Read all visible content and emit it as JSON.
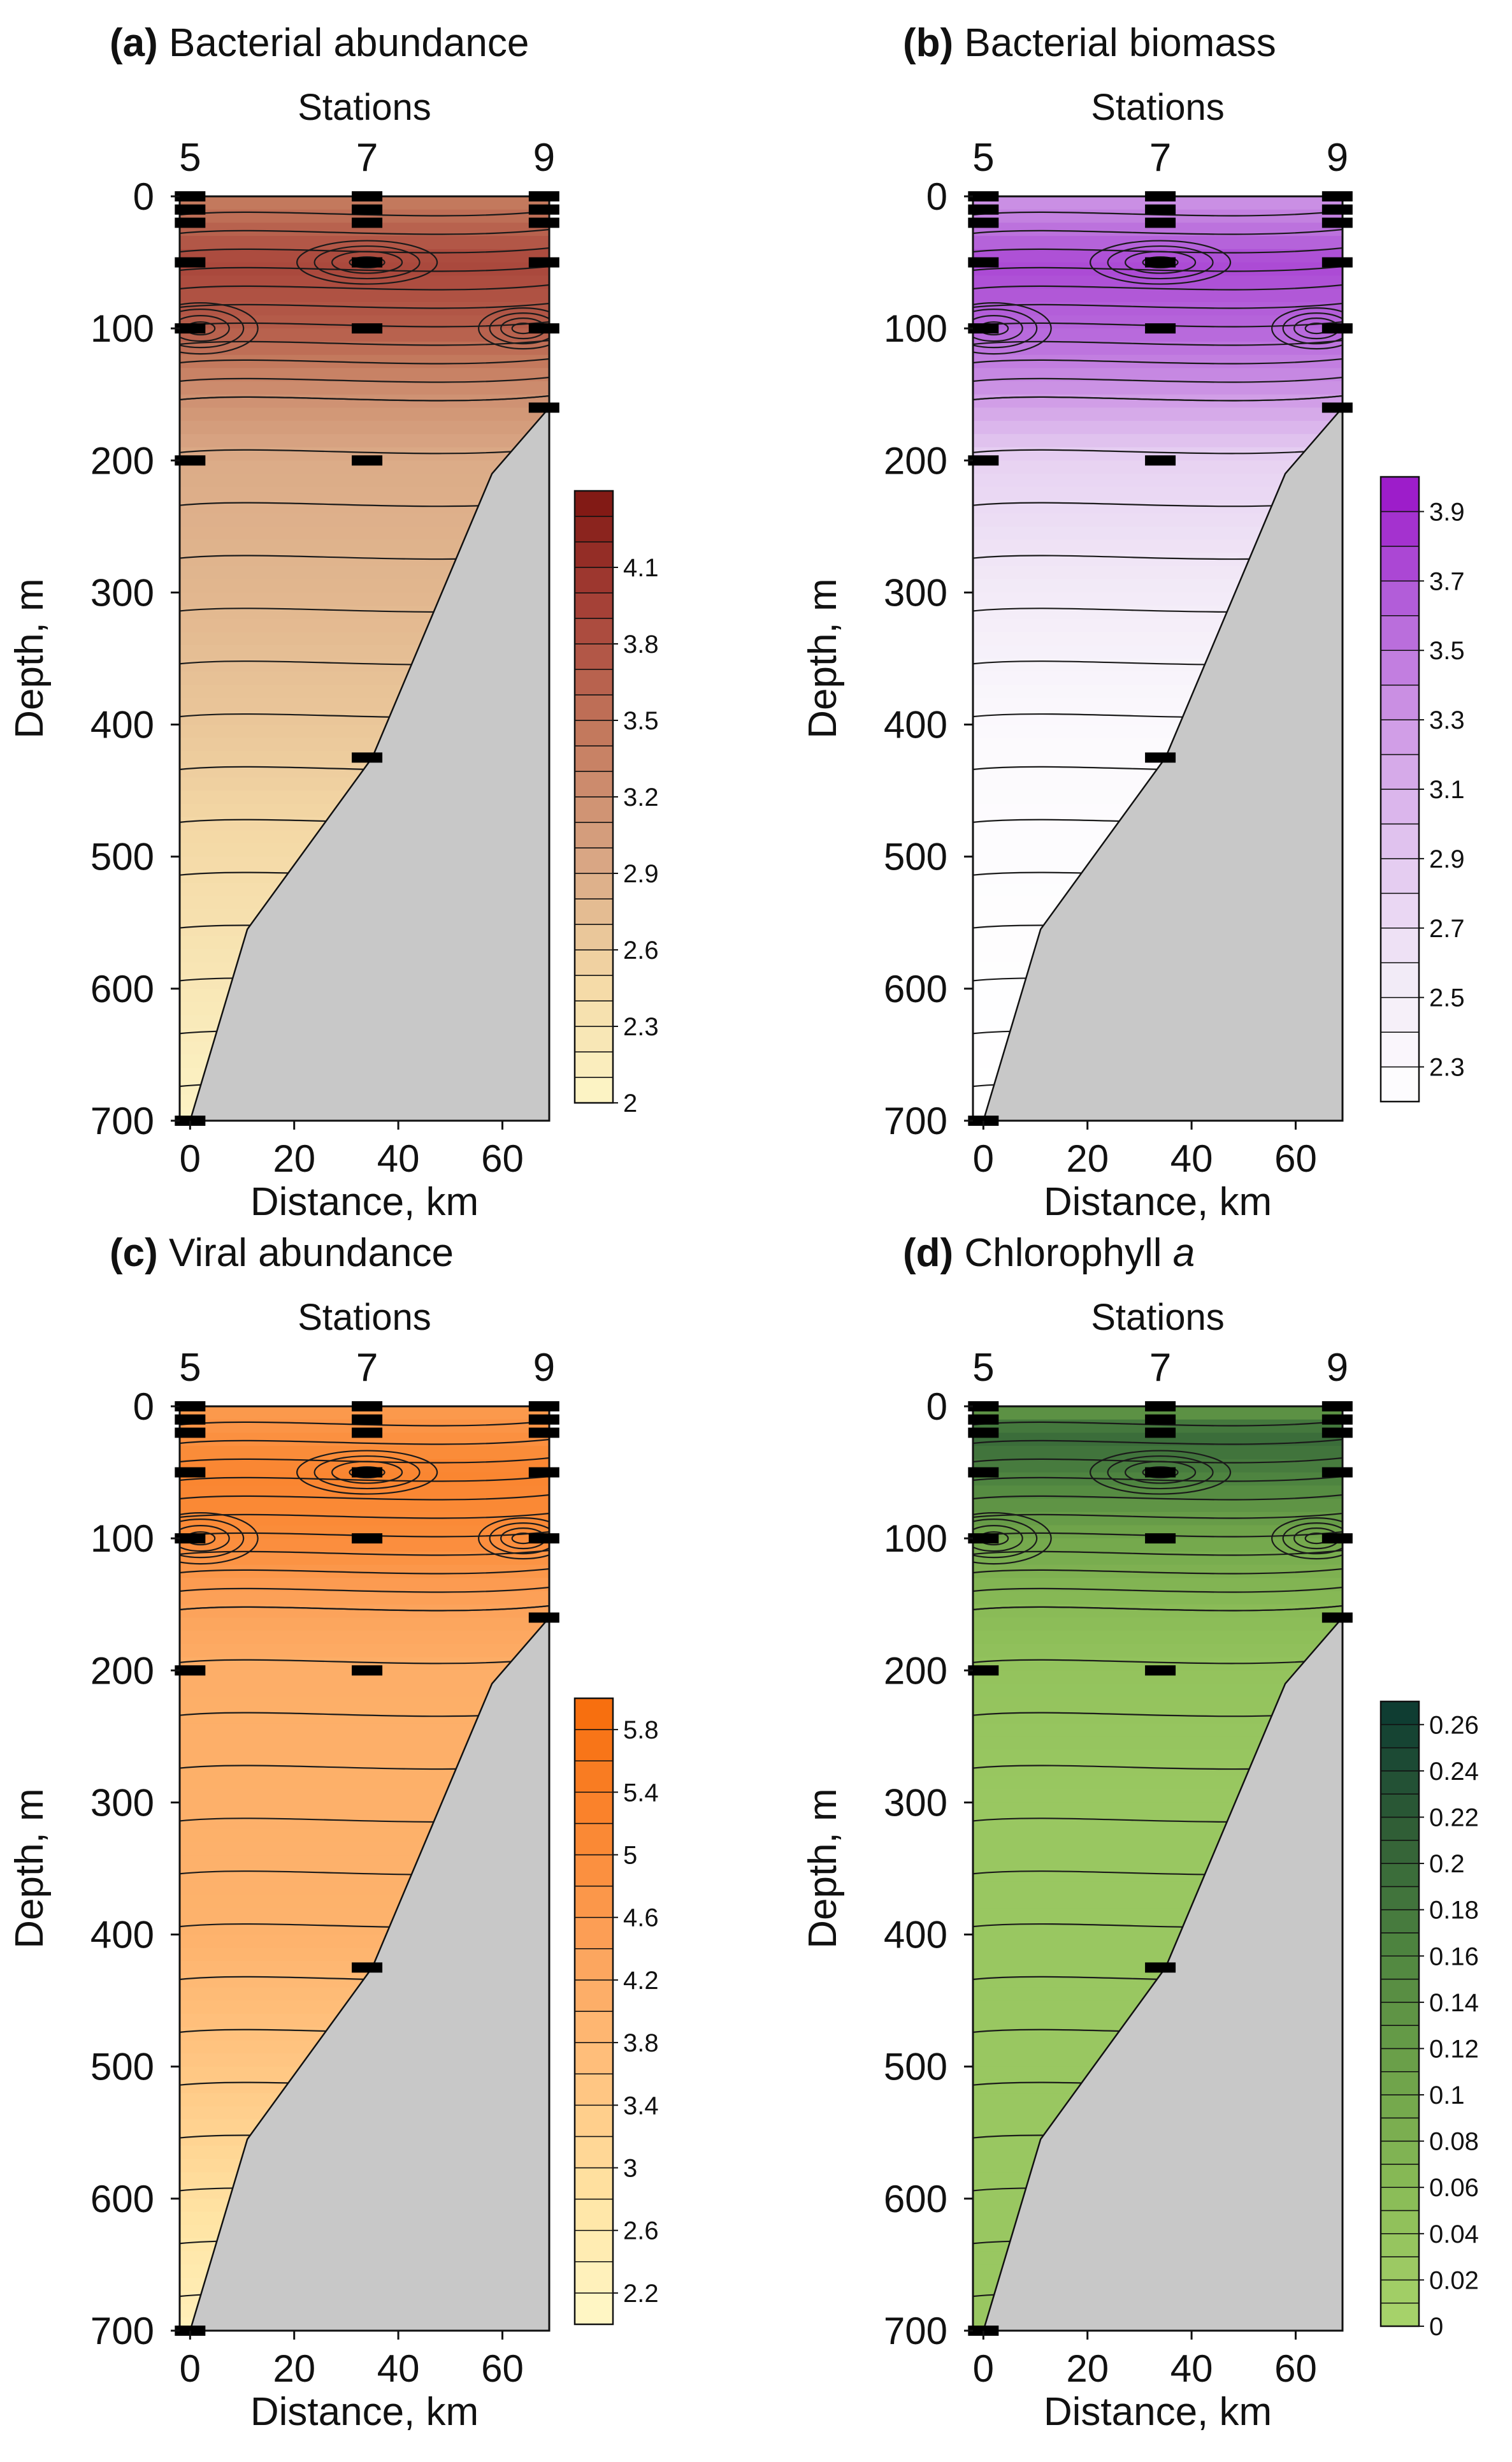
{
  "chart_data": [
    {
      "id": "a",
      "type": "contour",
      "panel_letter": "(a)",
      "title": "Bacterial abundance",
      "top_label": "Stations",
      "stations": [
        "5",
        "7",
        "9"
      ],
      "station_positions_km": [
        0,
        34,
        68
      ],
      "xlabel": "Distance, km",
      "ylabel": "Depth, m",
      "xlim": [
        -2,
        69
      ],
      "ylim": [
        700,
        0
      ],
      "xticks": [
        "0",
        "20",
        "40",
        "60"
      ],
      "yticks": [
        "0",
        "100",
        "200",
        "300",
        "400",
        "500",
        "600",
        "700"
      ],
      "colormap": [
        "#fdf6c8",
        "#f4d9a6",
        "#d8a583",
        "#c47a5e",
        "#a8443a",
        "#7e1511"
      ],
      "colorbar": {
        "ticks": [
          "4.1",
          "3.8",
          "3.5",
          "3.2",
          "2.9",
          "2.6",
          "2.3",
          "2"
        ],
        "values": [
          4.1,
          3.8,
          3.5,
          3.2,
          2.9,
          2.6,
          2.3,
          2.0
        ],
        "min": 2.0,
        "max": 4.4,
        "levels": 24
      },
      "depth_profile": {
        "depth_m": [
          0,
          50,
          100,
          150,
          200,
          300,
          400,
          500,
          600,
          700
        ],
        "value": [
          3.4,
          3.9,
          3.7,
          3.2,
          2.9,
          2.8,
          2.65,
          2.45,
          2.25,
          2.05
        ]
      },
      "seafloor": {
        "x_km": [
          0,
          11,
          35,
          58,
          69
        ],
        "depth_m": [
          700,
          555,
          425,
          210,
          160
        ]
      },
      "sample_depths": [
        {
          "station_km": 0,
          "depths_m": [
            0,
            10,
            20,
            50,
            100,
            200,
            700
          ]
        },
        {
          "station_km": 34,
          "depths_m": [
            0,
            10,
            20,
            50,
            100,
            200,
            425
          ]
        },
        {
          "station_km": 68,
          "depths_m": [
            0,
            10,
            20,
            50,
            100,
            160
          ]
        }
      ]
    },
    {
      "id": "b",
      "type": "contour",
      "panel_letter": "(b)",
      "title": "Bacterial biomass",
      "top_label": "Stations",
      "stations": [
        "5",
        "7",
        "9"
      ],
      "station_positions_km": [
        0,
        34,
        68
      ],
      "xlabel": "Distance, km",
      "ylabel": "Depth, m",
      "xlim": [
        -2,
        69
      ],
      "ylim": [
        700,
        0
      ],
      "xticks": [
        "0",
        "20",
        "40",
        "60"
      ],
      "yticks": [
        "0",
        "100",
        "200",
        "300",
        "400",
        "500",
        "600",
        "700"
      ],
      "colormap": [
        "#ffffff",
        "#f2eaf7",
        "#e2c6ef",
        "#cf9ae6",
        "#b35fd9",
        "#9a12c8"
      ],
      "colorbar": {
        "ticks": [
          "3.9",
          "3.7",
          "3.5",
          "3.3",
          "3.1",
          "2.9",
          "2.7",
          "2.5",
          "2.3"
        ],
        "values": [
          3.9,
          3.7,
          3.5,
          3.3,
          3.1,
          2.9,
          2.7,
          2.5,
          2.3
        ],
        "min": 2.2,
        "max": 4.0,
        "levels": 18
      },
      "depth_profile": {
        "depth_m": [
          0,
          50,
          100,
          150,
          200,
          300,
          400,
          500,
          600,
          700
        ],
        "value": [
          3.3,
          3.75,
          3.6,
          3.3,
          2.8,
          2.55,
          2.3,
          2.25,
          2.22,
          2.2
        ]
      },
      "seafloor": {
        "x_km": [
          0,
          11,
          35,
          58,
          69
        ],
        "depth_m": [
          700,
          555,
          425,
          210,
          160
        ]
      },
      "sample_depths": [
        {
          "station_km": 0,
          "depths_m": [
            0,
            10,
            20,
            50,
            100,
            200,
            700
          ]
        },
        {
          "station_km": 34,
          "depths_m": [
            0,
            10,
            20,
            50,
            100,
            200,
            425
          ]
        },
        {
          "station_km": 68,
          "depths_m": [
            0,
            10,
            20,
            50,
            100,
            160
          ]
        }
      ]
    },
    {
      "id": "c",
      "type": "contour",
      "panel_letter": "(c)",
      "title": "Viral abundance",
      "top_label": "Stations",
      "stations": [
        "5",
        "7",
        "9"
      ],
      "station_positions_km": [
        0,
        34,
        68
      ],
      "xlabel": "Distance, km",
      "ylabel": "Depth, m",
      "xlim": [
        -2,
        69
      ],
      "ylim": [
        700,
        0
      ],
      "xticks": [
        "0",
        "20",
        "40",
        "60"
      ],
      "yticks": [
        "0",
        "100",
        "200",
        "300",
        "400",
        "500",
        "600",
        "700"
      ],
      "colormap": [
        "#fff8c8",
        "#ffe4a4",
        "#ffc27e",
        "#fca25a",
        "#fa8530",
        "#f76c0a"
      ],
      "colorbar": {
        "ticks": [
          "5.8",
          "5.4",
          "5",
          "4.6",
          "4.2",
          "3.8",
          "3.4",
          "3",
          "2.6",
          "2.2"
        ],
        "values": [
          5.8,
          5.4,
          5.0,
          4.6,
          4.2,
          3.8,
          3.4,
          3.0,
          2.6,
          2.2
        ],
        "min": 2.0,
        "max": 6.0,
        "levels": 20
      },
      "depth_profile": {
        "depth_m": [
          0,
          50,
          100,
          150,
          200,
          300,
          400,
          500,
          600,
          700
        ],
        "value": [
          4.6,
          5.2,
          5.0,
          4.4,
          4.1,
          4.05,
          4.0,
          3.5,
          2.9,
          2.3
        ]
      },
      "seafloor": {
        "x_km": [
          0,
          11,
          35,
          58,
          69
        ],
        "depth_m": [
          700,
          555,
          425,
          210,
          160
        ]
      },
      "sample_depths": [
        {
          "station_km": 0,
          "depths_m": [
            0,
            10,
            20,
            50,
            100,
            200,
            700
          ]
        },
        {
          "station_km": 34,
          "depths_m": [
            0,
            10,
            20,
            50,
            100,
            200,
            425
          ]
        },
        {
          "station_km": 68,
          "depths_m": [
            0,
            10,
            20,
            50,
            100,
            160
          ]
        }
      ]
    },
    {
      "id": "d",
      "type": "contour",
      "panel_letter": "(d)",
      "title": "Chlorophyll",
      "title_suffix": "a",
      "top_label": "Stations",
      "stations": [
        "5",
        "7",
        "9"
      ],
      "station_positions_km": [
        0,
        34,
        68
      ],
      "xlabel": "Distance, km",
      "ylabel": "Depth, m",
      "xlim": [
        -2,
        69
      ],
      "ylim": [
        700,
        0
      ],
      "xticks": [
        "0",
        "20",
        "40",
        "60"
      ],
      "yticks": [
        "0",
        "100",
        "200",
        "300",
        "400",
        "500",
        "600",
        "700"
      ],
      "colormap": [
        "#a9d46c",
        "#8cbd58",
        "#6ea34a",
        "#4f8540",
        "#2f5d36",
        "#0c3a32"
      ],
      "colorbar": {
        "ticks": [
          "0.26",
          "0.24",
          "0.22",
          "0.2",
          "0.18",
          "0.16",
          "0.14",
          "0.12",
          "0.1",
          "0.08",
          "0.06",
          "0.04",
          "0.02",
          "0"
        ],
        "values": [
          0.26,
          0.24,
          0.22,
          0.2,
          0.18,
          0.16,
          0.14,
          0.12,
          0.1,
          0.08,
          0.06,
          0.04,
          0.02,
          0
        ],
        "min": 0,
        "max": 0.27,
        "levels": 27
      },
      "depth_profile": {
        "depth_m": [
          0,
          20,
          50,
          100,
          150,
          200,
          300,
          400,
          500,
          600,
          700
        ],
        "value": [
          0.12,
          0.2,
          0.17,
          0.1,
          0.06,
          0.04,
          0.03,
          0.03,
          0.03,
          0.03,
          0.03
        ]
      },
      "seafloor": {
        "x_km": [
          0,
          11,
          35,
          58,
          69
        ],
        "depth_m": [
          700,
          555,
          425,
          210,
          160
        ]
      },
      "sample_depths": [
        {
          "station_km": 0,
          "depths_m": [
            0,
            10,
            20,
            50,
            100,
            200,
            700
          ]
        },
        {
          "station_km": 34,
          "depths_m": [
            0,
            10,
            20,
            50,
            100,
            200,
            425
          ]
        },
        {
          "station_km": 68,
          "depths_m": [
            0,
            10,
            20,
            50,
            100,
            160
          ]
        }
      ]
    }
  ]
}
